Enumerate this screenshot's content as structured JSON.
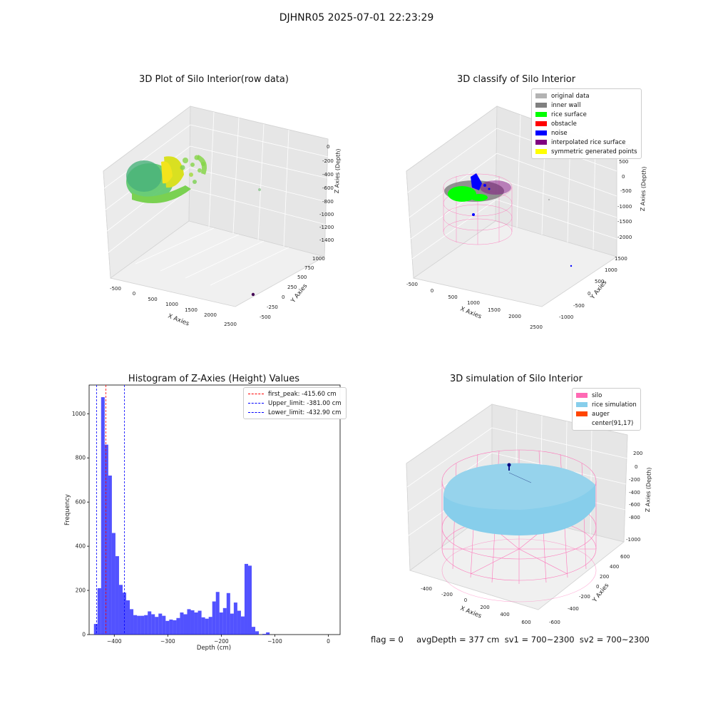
{
  "suptitle": "DJHNR05 2025-07-01 22:23:29",
  "panels": {
    "raw": {
      "title": "3D Plot of Silo Interior(row data)",
      "xlabel": "X Axies",
      "ylabel": "Y Axies",
      "zlabel": "Z Axies (Depth)",
      "xticks": [
        "-500",
        "0",
        "500",
        "1000",
        "1500",
        "2000",
        "2500"
      ],
      "yticks": [
        "-500",
        "-250",
        "0",
        "250",
        "500",
        "750",
        "1000"
      ],
      "zticks": [
        "0",
        "-200",
        "-400",
        "-600",
        "-800",
        "-1000",
        "-1200",
        "-1400"
      ]
    },
    "classify": {
      "title": "3D classify of Silo Interior",
      "xlabel": "X Axies",
      "ylabel": "Y Axies",
      "zlabel": "Z Axies (Depth)",
      "xticks": [
        "-500",
        "0",
        "500",
        "1000",
        "1500",
        "2000",
        "2500"
      ],
      "yticks": [
        "-1000",
        "-500",
        "0",
        "500",
        "1000",
        "1500"
      ],
      "zticks": [
        "1000",
        "500",
        "0",
        "-500",
        "-1000",
        "-1500",
        "-2000"
      ],
      "legend": [
        {
          "label": "original data",
          "color": "#b3b3b3"
        },
        {
          "label": "inner wall",
          "color": "#808080"
        },
        {
          "label": "rice surface",
          "color": "#00ff00"
        },
        {
          "label": "obstacle",
          "color": "#ff0000"
        },
        {
          "label": "noise",
          "color": "#0000ff"
        },
        {
          "label": "interpolated rice surface",
          "color": "#800080"
        },
        {
          "label": "symmetric generated points",
          "color": "#ffff00"
        }
      ]
    },
    "simulation": {
      "title": "3D simulation of Silo Interior",
      "xlabel": "X Axies",
      "ylabel": "Y Axies",
      "zlabel": "Z Axies (Depth)",
      "xticks": [
        "-400",
        "-200",
        "0",
        "200",
        "400",
        "600"
      ],
      "yticks": [
        "-600",
        "-400",
        "-200",
        "0",
        "200",
        "400",
        "600"
      ],
      "zticks": [
        "200",
        "0",
        "-200",
        "-400",
        "-600",
        "-800",
        "-1000"
      ],
      "legend": [
        {
          "label": "silo",
          "color": "#ff69b4"
        },
        {
          "label": "rice simulation",
          "color": "#87ceeb"
        },
        {
          "label": "auger",
          "color": "#ff4500"
        },
        {
          "label": "center(91,17)",
          "color": "#ffffff"
        }
      ]
    }
  },
  "footer": "flag = 0     avgDepth = 377 cm  sv1 = 700~2300  sv2 = 700~2300",
  "chart_data": [
    {
      "type": "bar",
      "title": "Histogram of Z-Axies (Height) Values",
      "xlabel": "Depth (cm)",
      "ylabel": "Frequency",
      "xlim": [
        -447,
        22
      ],
      "ylim": [
        0,
        1130
      ],
      "xticks": [
        -400,
        -300,
        -200,
        -100,
        0
      ],
      "yticks": [
        0,
        200,
        400,
        600,
        800,
        1000
      ],
      "bin_width": 6.7,
      "bin_start": -438,
      "color": "#0000ff",
      "values": [
        48,
        210,
        1075,
        860,
        720,
        460,
        355,
        225,
        190,
        155,
        115,
        88,
        85,
        85,
        88,
        105,
        92,
        80,
        95,
        85,
        62,
        68,
        65,
        75,
        100,
        92,
        115,
        110,
        100,
        108,
        78,
        72,
        80,
        150,
        193,
        100,
        120,
        188,
        95,
        145,
        108,
        82,
        320,
        312,
        35,
        15,
        0,
        3,
        10,
        0
      ],
      "vlines": [
        {
          "label": "first_peak: -415.60 cm",
          "x": -415.6,
          "color": "#ff0000"
        },
        {
          "label": "Upper_limit: -381.00 cm",
          "x": -381.0,
          "color": "#0000ff"
        },
        {
          "label": "Lower_limit: -432.90 cm",
          "x": -432.9,
          "color": "#0000ff"
        }
      ],
      "legend_position": "top-right"
    }
  ]
}
